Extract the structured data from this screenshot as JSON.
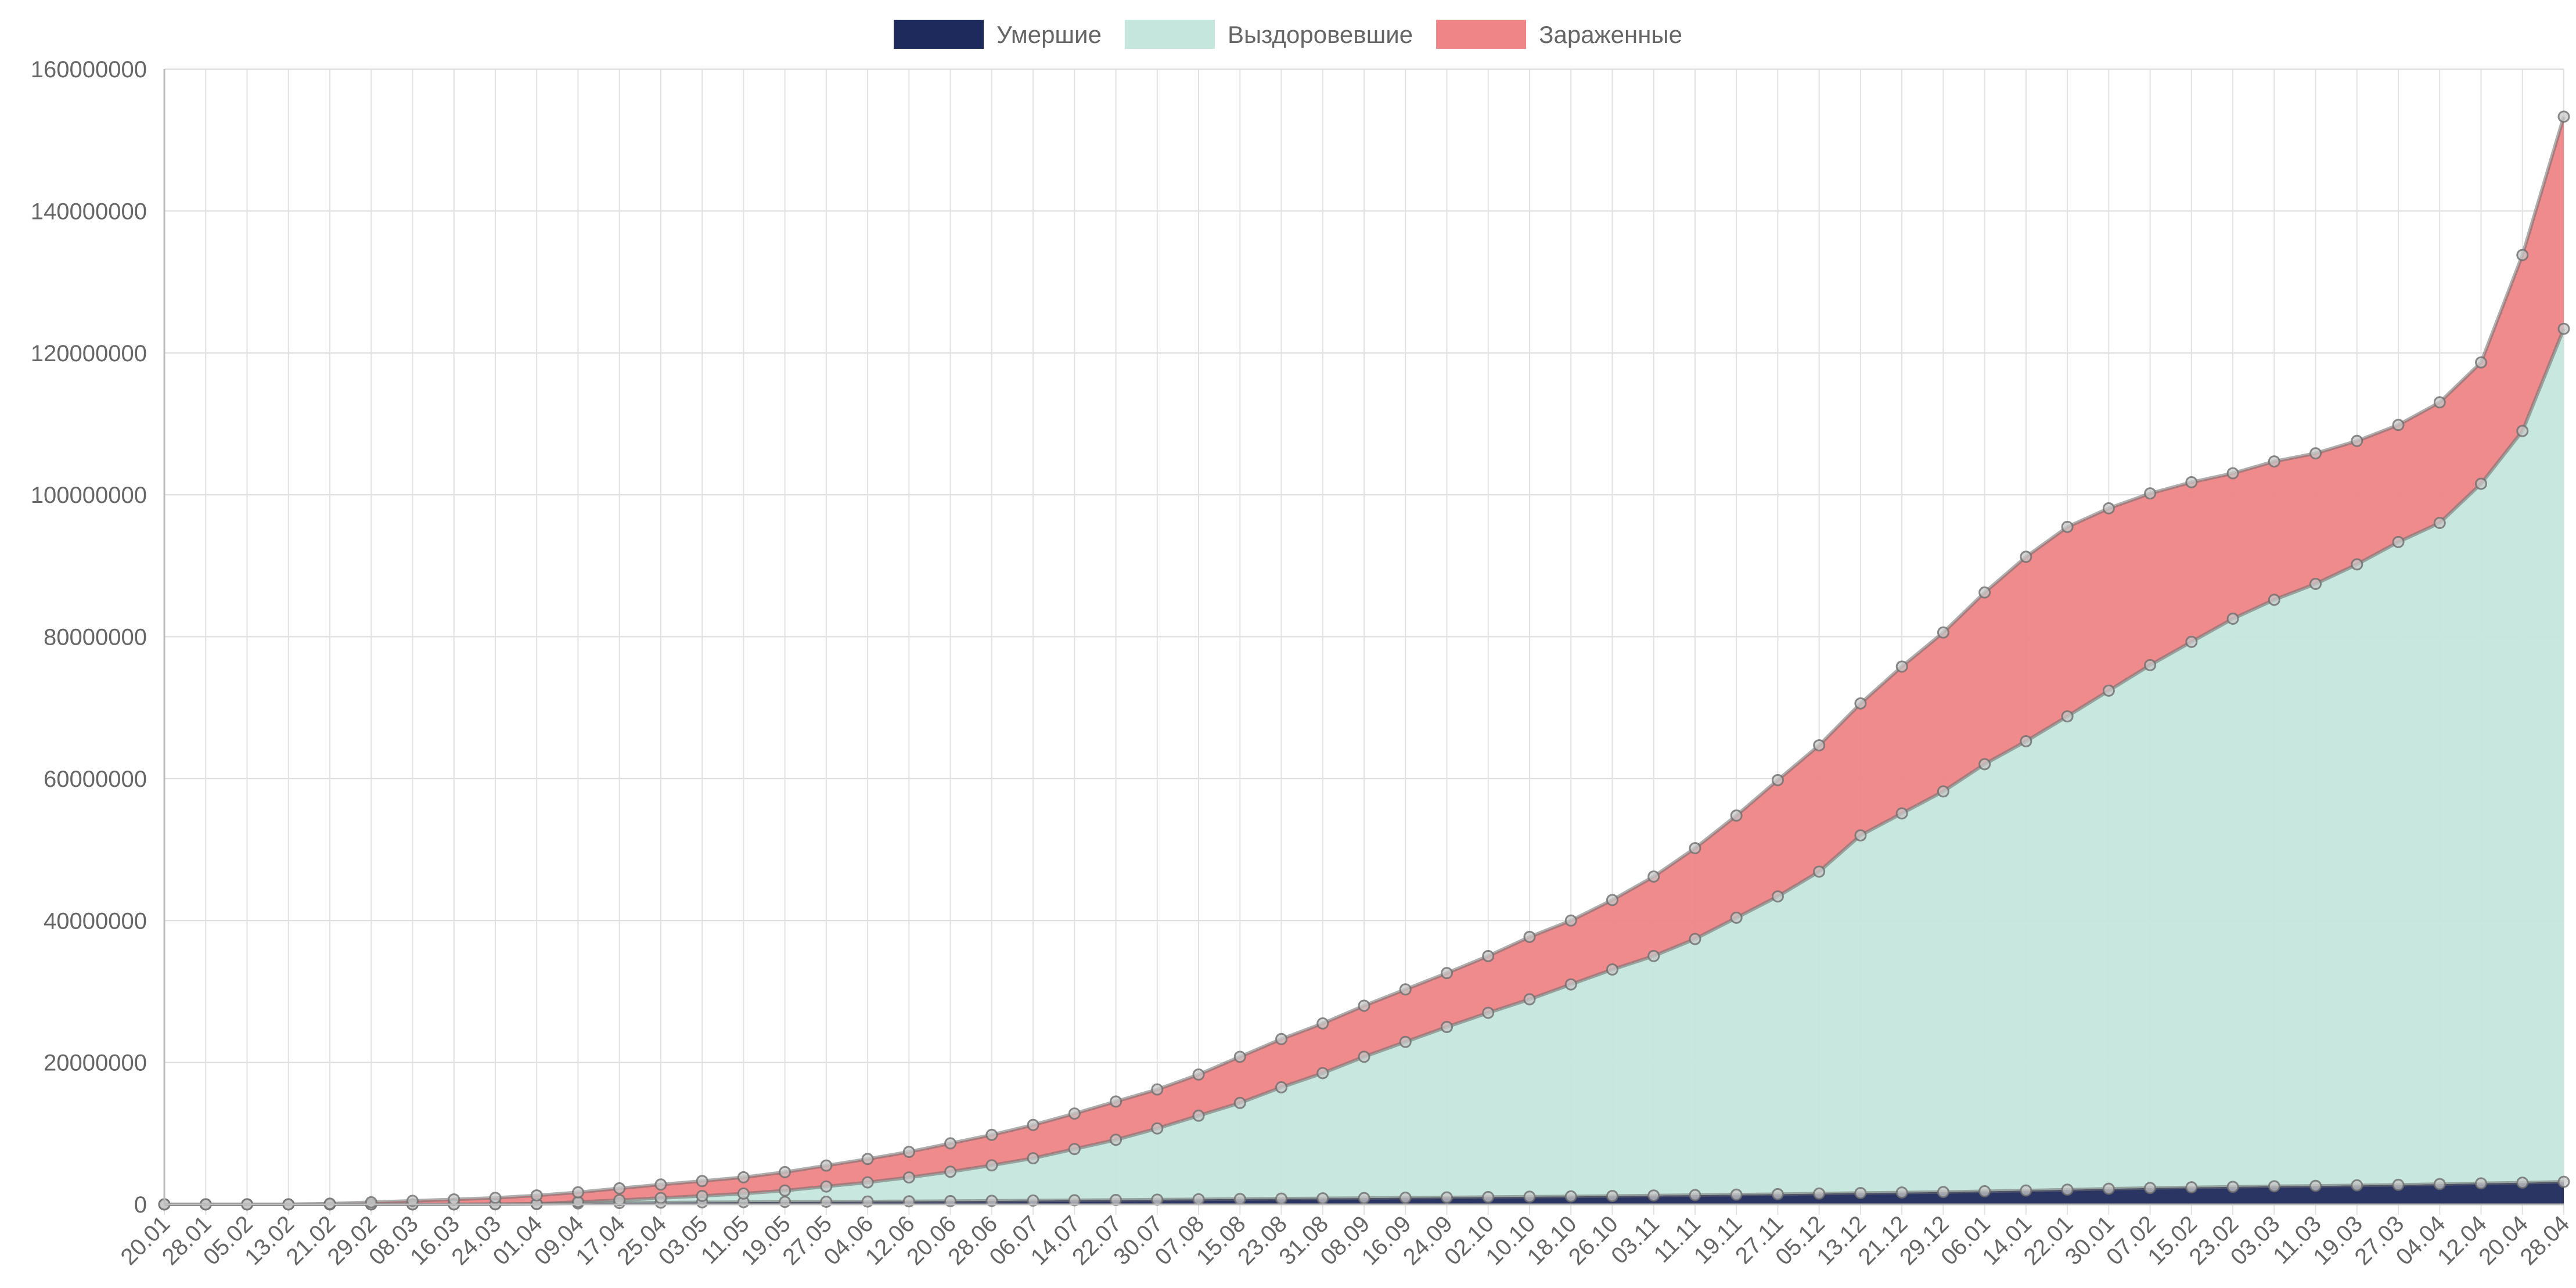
{
  "chart_data": {
    "type": "area",
    "stacked": true,
    "legend_position": "top",
    "grid": true,
    "title": "",
    "xlabel": "",
    "ylabel": "",
    "ylim": [
      0,
      160000000
    ],
    "yticks": [
      0,
      20000000,
      40000000,
      60000000,
      80000000,
      100000000,
      120000000,
      140000000,
      160000000
    ],
    "x_tick_labels": [
      "20.01",
      "28.01",
      "05.02",
      "13.02",
      "21.02",
      "29.02",
      "08.03",
      "16.03",
      "24.03",
      "01.04",
      "09.04",
      "17.04",
      "25.04",
      "03.05",
      "11.05",
      "19.05",
      "27.05",
      "04.06",
      "12.06",
      "20.06",
      "28.06",
      "06.07",
      "14.07",
      "22.07",
      "30.07",
      "07.08",
      "15.08",
      "23.08",
      "31.08",
      "08.09",
      "16.09",
      "24.09",
      "02.10",
      "10.10",
      "18.10",
      "26.10",
      "03.11",
      "11.11",
      "19.11",
      "27.11",
      "05.12",
      "13.12",
      "21.12",
      "29.12",
      "06.01",
      "14.01",
      "22.01",
      "30.01",
      "07.02",
      "15.02",
      "23.02",
      "03.03",
      "11.03",
      "19.03",
      "27.03",
      "04.04",
      "12.04",
      "20.04",
      "28.04"
    ],
    "series": [
      {
        "name": "Умершие",
        "color": "#1f2a5c",
        "values": [
          0,
          0,
          0,
          0,
          0,
          0,
          0,
          0,
          20000,
          60000,
          140000,
          200000,
          250000,
          290000,
          320000,
          350000,
          370000,
          400000,
          430000,
          460000,
          500000,
          540000,
          580000,
          620000,
          670000,
          720000,
          760000,
          810000,
          850000,
          890000,
          940000,
          980000,
          1030000,
          1080000,
          1130000,
          1180000,
          1250000,
          1310000,
          1370000,
          1440000,
          1520000,
          1600000,
          1670000,
          1740000,
          1850000,
          1950000,
          2070000,
          2200000,
          2310000,
          2400000,
          2470000,
          2550000,
          2610000,
          2680000,
          2750000,
          2860000,
          2960000,
          3060000,
          3180000
        ]
      },
      {
        "name": "Выздоровевшие",
        "color": "#c5e6dc",
        "values": [
          0,
          0,
          0,
          0,
          0,
          0,
          0,
          0,
          0,
          20000,
          200000,
          400000,
          650000,
          900000,
          1200000,
          1600000,
          2150000,
          2700000,
          3370000,
          4140000,
          5000000,
          5960000,
          7220000,
          8480000,
          10030000,
          11780000,
          13540000,
          15690000,
          17650000,
          19910000,
          21960000,
          24020000,
          25970000,
          27820000,
          29870000,
          31920000,
          33750000,
          36090000,
          39030000,
          41960000,
          45380000,
          50400000,
          53430000,
          56460000,
          60190000,
          63320000,
          66710000,
          70200000,
          73690000,
          76880000,
          80070000,
          82660000,
          84840000,
          87520000,
          90600000,
          93180000,
          98600000,
          105940000,
          120220000
        ]
      },
      {
        "name": "Зараженные",
        "color": "#ef8587",
        "values": [
          0,
          0,
          0,
          0,
          100000,
          300000,
          500000,
          700000,
          900000,
          1180000,
          1360000,
          1660000,
          1900000,
          2100000,
          2300000,
          2600000,
          2950000,
          3300000,
          3600000,
          4000000,
          4300000,
          4700000,
          5000000,
          5400000,
          5500000,
          5800000,
          6500000,
          6800000,
          7000000,
          7200000,
          7400000,
          7600000,
          8000000,
          8800000,
          9000000,
          9800000,
          11200000,
          12800000,
          14400000,
          16400000,
          17800000,
          18600000,
          20700000,
          22400000,
          24200000,
          26000000,
          26700000,
          25700000,
          24200000,
          22500000,
          20500000,
          19500000,
          18400000,
          17400000,
          16500000,
          17000000,
          17100000,
          24800000,
          29900000
        ]
      }
    ]
  }
}
